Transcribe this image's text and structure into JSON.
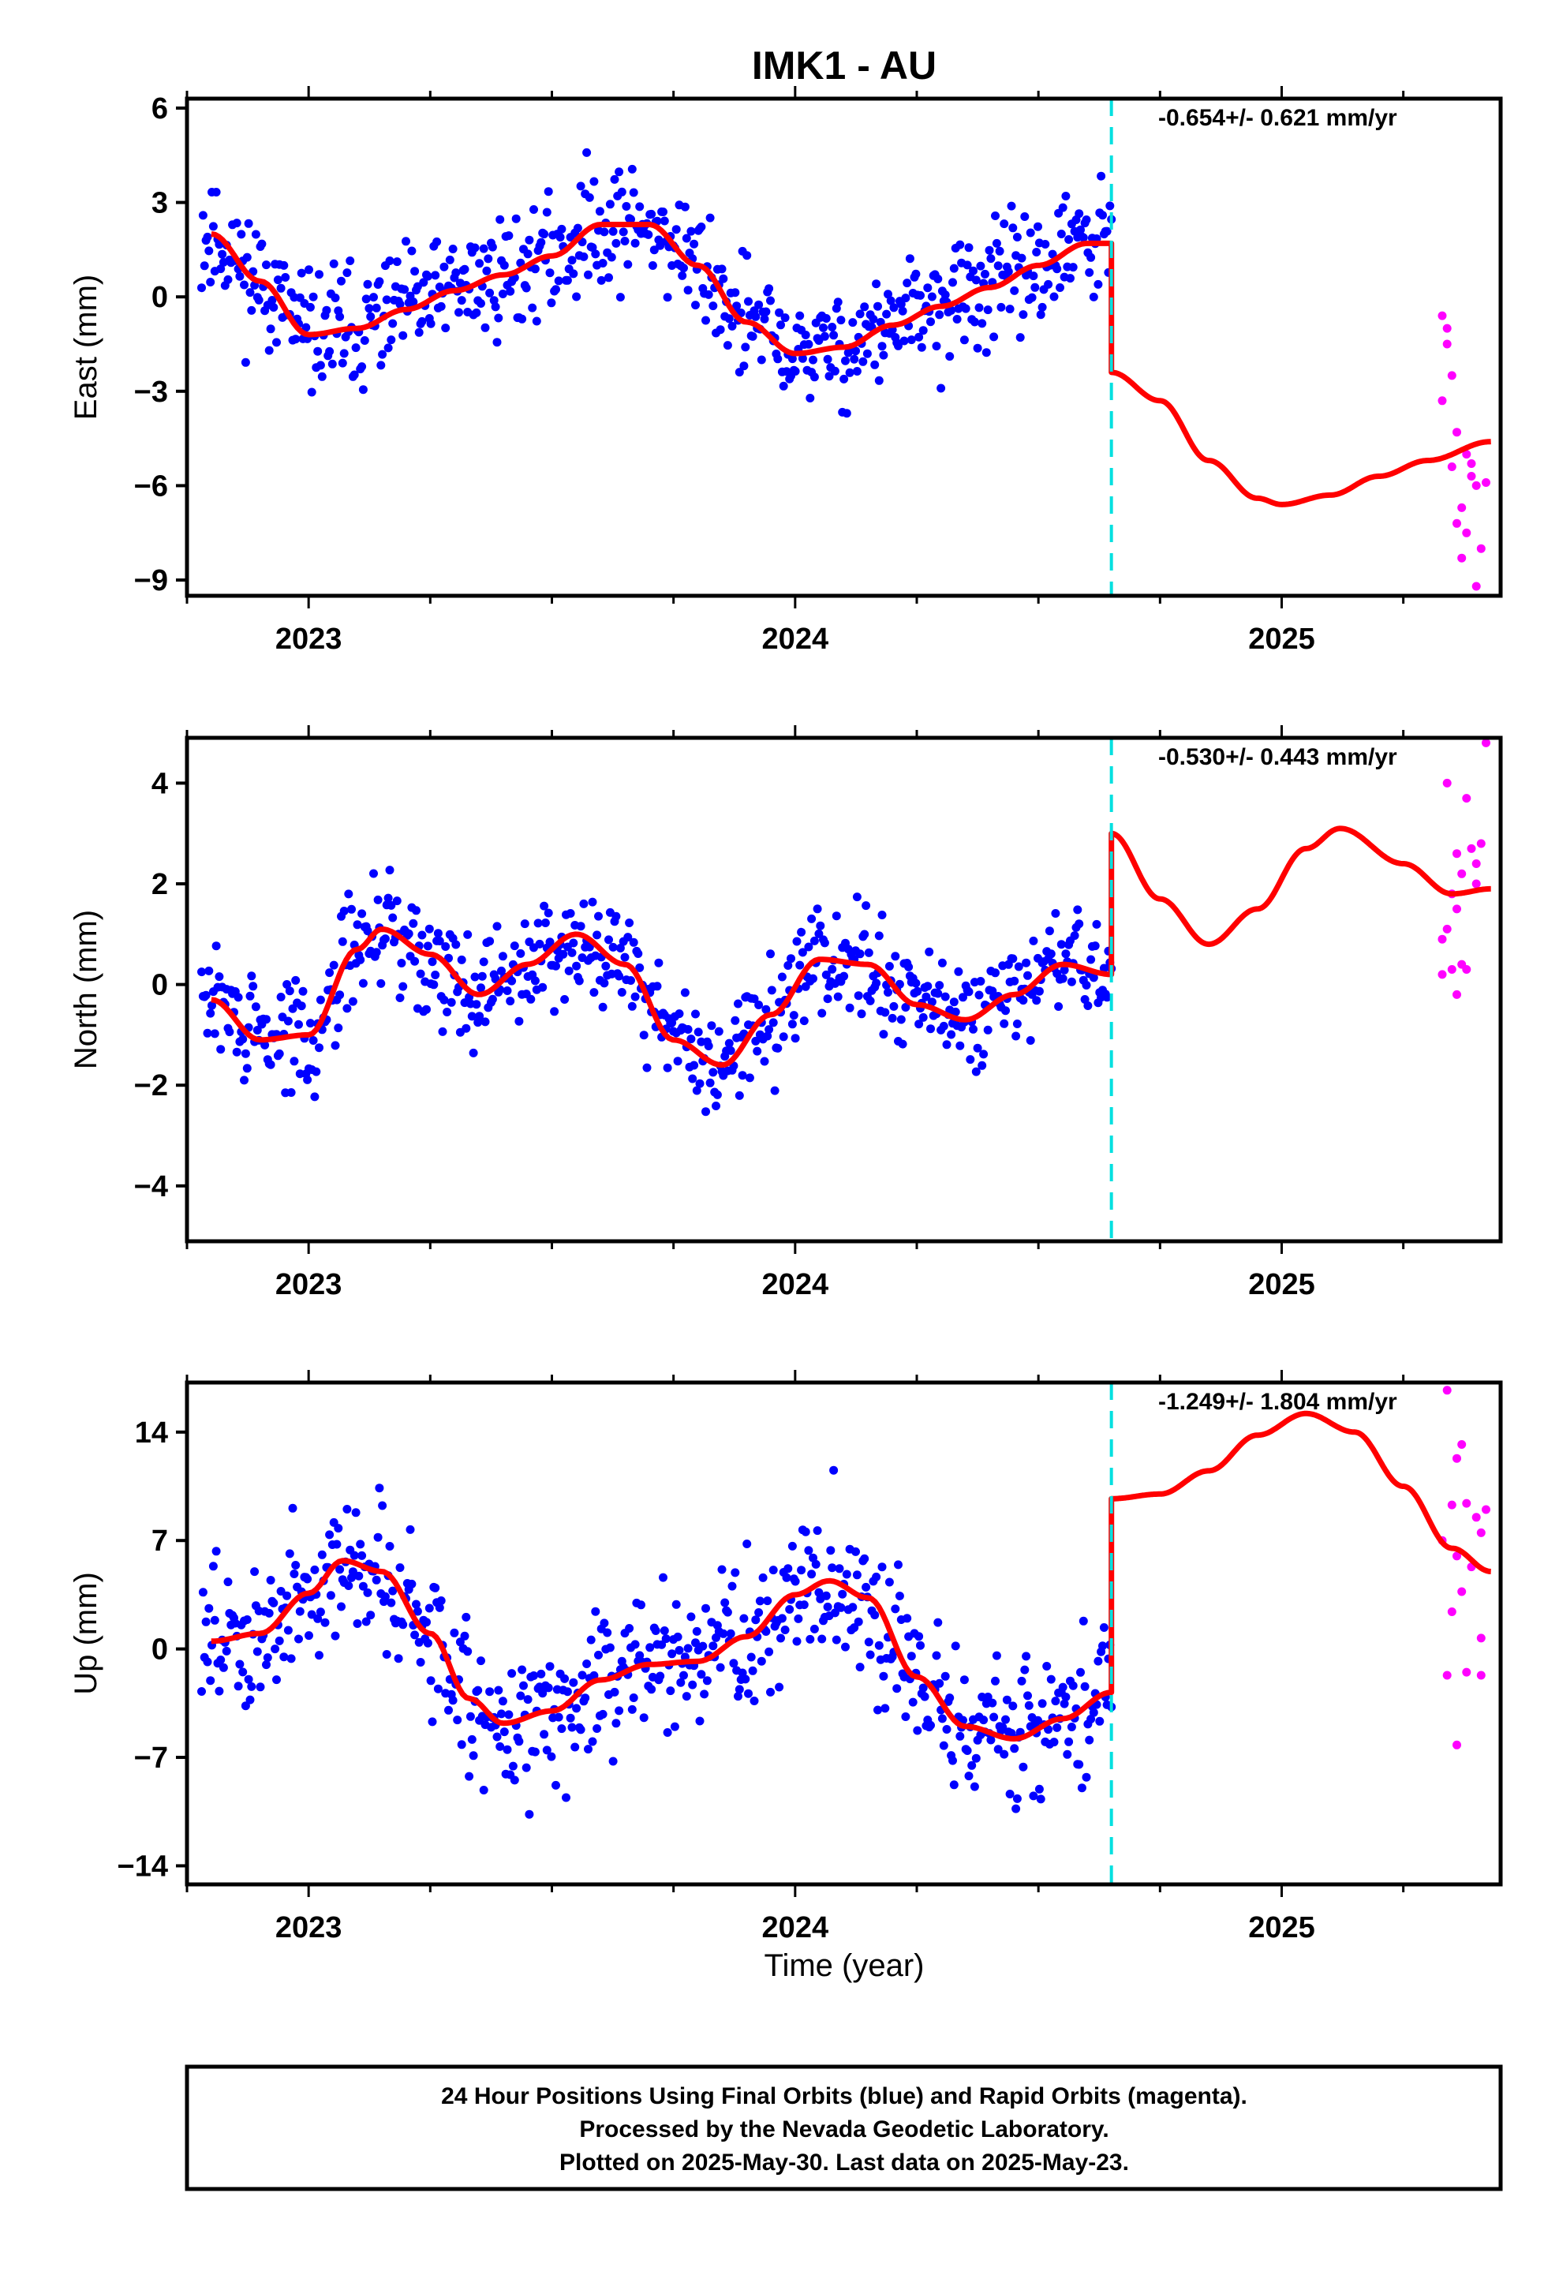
{
  "title": "IMK1 - AU",
  "x_axis_label": "Time (year)",
  "footer": {
    "line1": "24 Hour Positions Using Final Orbits (blue) and Rapid Orbits (magenta).",
    "line2": "Processed by the Nevada Geodetic Laboratory.",
    "line3": "Plotted on 2025-May-30. Last data on 2025-May-23."
  },
  "colors": {
    "final": "#0000ff",
    "rapid": "#ff00ff",
    "model": "#ff0000",
    "break": "#00e0e0"
  },
  "chart_data": [
    {
      "type": "scatter",
      "component": "east",
      "ylabel": "East (mm)",
      "rate_text": "-0.654+/- 0.621 mm/yr",
      "xlim": [
        2022.75,
        2025.45
      ],
      "ylim": [
        -9.5,
        6.3
      ],
      "yticks": [
        6,
        3,
        0,
        -3,
        -6,
        -9
      ],
      "xticks": [
        2023,
        2024,
        2025
      ],
      "break_x": 2024.65,
      "seed": 11,
      "model_pre": [
        [
          2022.8,
          2.0
        ],
        [
          2022.9,
          0.5
        ],
        [
          2023.0,
          -1.2
        ],
        [
          2023.1,
          -1.0
        ],
        [
          2023.2,
          -0.4
        ],
        [
          2023.3,
          0.2
        ],
        [
          2023.4,
          0.7
        ],
        [
          2023.5,
          1.3
        ],
        [
          2023.6,
          2.3
        ],
        [
          2023.7,
          2.3
        ],
        [
          2023.8,
          1.0
        ],
        [
          2023.9,
          -0.8
        ],
        [
          2024.0,
          -1.8
        ],
        [
          2024.1,
          -1.6
        ],
        [
          2024.2,
          -0.9
        ],
        [
          2024.3,
          -0.3
        ],
        [
          2024.4,
          0.3
        ],
        [
          2024.5,
          1.0
        ],
        [
          2024.6,
          1.7
        ],
        [
          2024.65,
          1.7
        ]
      ],
      "model_post": [
        [
          2024.65,
          -2.4
        ],
        [
          2024.75,
          -3.3
        ],
        [
          2024.85,
          -5.2
        ],
        [
          2024.95,
          -6.4
        ],
        [
          2025.0,
          -6.6
        ],
        [
          2025.1,
          -6.3
        ],
        [
          2025.2,
          -5.7
        ],
        [
          2025.3,
          -5.2
        ],
        [
          2025.43,
          -4.6
        ]
      ],
      "rapid_points": [
        [
          2025.33,
          -0.6
        ],
        [
          2025.34,
          -1.0
        ],
        [
          2025.35,
          -2.5
        ],
        [
          2025.33,
          -3.3
        ],
        [
          2025.36,
          -4.3
        ],
        [
          2025.38,
          -5.0
        ],
        [
          2025.35,
          -5.4
        ],
        [
          2025.39,
          -5.7
        ],
        [
          2025.4,
          -6.0
        ],
        [
          2025.37,
          -6.7
        ],
        [
          2025.36,
          -7.2
        ],
        [
          2025.38,
          -7.5
        ],
        [
          2025.41,
          -8.0
        ],
        [
          2025.37,
          -8.3
        ],
        [
          2025.4,
          -9.2
        ],
        [
          2025.42,
          -5.9
        ],
        [
          2025.34,
          -1.5
        ],
        [
          2025.39,
          -5.3
        ]
      ],
      "final_series": {
        "x_start": 2022.78,
        "x_end": 2024.65,
        "count": 620,
        "noise": 1.35
      }
    },
    {
      "type": "scatter",
      "component": "north",
      "ylabel": "North (mm)",
      "rate_text": "-0.530+/- 0.443 mm/yr",
      "xlim": [
        2022.75,
        2025.45
      ],
      "ylim": [
        -5.1,
        4.9
      ],
      "yticks": [
        4,
        2,
        0,
        -2,
        -4
      ],
      "xticks": [
        2023,
        2024,
        2025
      ],
      "break_x": 2024.65,
      "seed": 29,
      "model_pre": [
        [
          2022.8,
          -0.3
        ],
        [
          2022.9,
          -1.1
        ],
        [
          2023.0,
          -1.0
        ],
        [
          2023.1,
          0.7
        ],
        [
          2023.15,
          1.1
        ],
        [
          2023.25,
          0.6
        ],
        [
          2023.35,
          -0.2
        ],
        [
          2023.45,
          0.4
        ],
        [
          2023.55,
          1.0
        ],
        [
          2023.65,
          0.4
        ],
        [
          2023.75,
          -1.1
        ],
        [
          2023.85,
          -1.6
        ],
        [
          2023.95,
          -0.6
        ],
        [
          2024.05,
          0.5
        ],
        [
          2024.15,
          0.4
        ],
        [
          2024.25,
          -0.4
        ],
        [
          2024.35,
          -0.7
        ],
        [
          2024.45,
          -0.2
        ],
        [
          2024.55,
          0.4
        ],
        [
          2024.65,
          0.2
        ]
      ],
      "model_post": [
        [
          2024.65,
          3.0
        ],
        [
          2024.75,
          1.7
        ],
        [
          2024.85,
          0.8
        ],
        [
          2024.95,
          1.5
        ],
        [
          2025.05,
          2.7
        ],
        [
          2025.12,
          3.1
        ],
        [
          2025.25,
          2.4
        ],
        [
          2025.35,
          1.8
        ],
        [
          2025.43,
          1.9
        ]
      ],
      "rapid_points": [
        [
          2025.33,
          0.9
        ],
        [
          2025.35,
          1.8
        ],
        [
          2025.36,
          2.6
        ],
        [
          2025.34,
          4.0
        ],
        [
          2025.38,
          3.7
        ],
        [
          2025.42,
          4.8
        ],
        [
          2025.39,
          2.7
        ],
        [
          2025.4,
          2.4
        ],
        [
          2025.37,
          2.2
        ],
        [
          2025.41,
          2.8
        ],
        [
          2025.36,
          1.5
        ],
        [
          2025.34,
          1.1
        ],
        [
          2025.37,
          0.4
        ],
        [
          2025.35,
          0.3
        ],
        [
          2025.38,
          0.3
        ],
        [
          2025.33,
          0.2
        ],
        [
          2025.36,
          -0.2
        ],
        [
          2025.4,
          2.0
        ]
      ],
      "final_series": {
        "x_start": 2022.78,
        "x_end": 2024.65,
        "count": 620,
        "noise": 0.8
      }
    },
    {
      "type": "scatter",
      "component": "up",
      "ylabel": "Up (mm)",
      "rate_text": "-1.249+/- 1.804 mm/yr",
      "xlim": [
        2022.75,
        2025.45
      ],
      "ylim": [
        -15.2,
        17.2
      ],
      "yticks": [
        14,
        7,
        0,
        -7,
        -14
      ],
      "xticks": [
        2023,
        2024,
        2025
      ],
      "break_x": 2024.65,
      "seed": 47,
      "model_pre": [
        [
          2022.8,
          0.5
        ],
        [
          2022.9,
          1.0
        ],
        [
          2023.0,
          3.6
        ],
        [
          2023.07,
          5.7
        ],
        [
          2023.15,
          5.0
        ],
        [
          2023.25,
          1.0
        ],
        [
          2023.33,
          -3.2
        ],
        [
          2023.4,
          -4.8
        ],
        [
          2023.5,
          -4.0
        ],
        [
          2023.6,
          -2.0
        ],
        [
          2023.7,
          -1.0
        ],
        [
          2023.8,
          -0.8
        ],
        [
          2023.9,
          0.8
        ],
        [
          2024.0,
          3.5
        ],
        [
          2024.07,
          4.4
        ],
        [
          2024.15,
          3.3
        ],
        [
          2024.25,
          -1.8
        ],
        [
          2024.35,
          -5.0
        ],
        [
          2024.45,
          -5.8
        ],
        [
          2024.55,
          -4.5
        ],
        [
          2024.65,
          -2.8
        ]
      ],
      "model_post": [
        [
          2024.65,
          9.7
        ],
        [
          2024.75,
          10.0
        ],
        [
          2024.85,
          11.5
        ],
        [
          2024.95,
          13.8
        ],
        [
          2025.05,
          15.2
        ],
        [
          2025.15,
          14.0
        ],
        [
          2025.25,
          10.5
        ],
        [
          2025.35,
          6.5
        ],
        [
          2025.43,
          5.0
        ]
      ],
      "rapid_points": [
        [
          2025.34,
          16.7
        ],
        [
          2025.37,
          13.2
        ],
        [
          2025.36,
          12.3
        ],
        [
          2025.38,
          9.4
        ],
        [
          2025.4,
          8.5
        ],
        [
          2025.42,
          9.0
        ],
        [
          2025.35,
          9.3
        ],
        [
          2025.33,
          7.0
        ],
        [
          2025.36,
          6.0
        ],
        [
          2025.39,
          5.3
        ],
        [
          2025.41,
          7.5
        ],
        [
          2025.37,
          3.7
        ],
        [
          2025.35,
          2.4
        ],
        [
          2025.41,
          0.7
        ],
        [
          2025.38,
          -1.5
        ],
        [
          2025.34,
          -1.7
        ],
        [
          2025.41,
          -1.7
        ],
        [
          2025.36,
          -6.2
        ]
      ],
      "final_series": {
        "x_start": 2022.78,
        "x_end": 2024.65,
        "count": 620,
        "noise": 3.4
      }
    }
  ]
}
